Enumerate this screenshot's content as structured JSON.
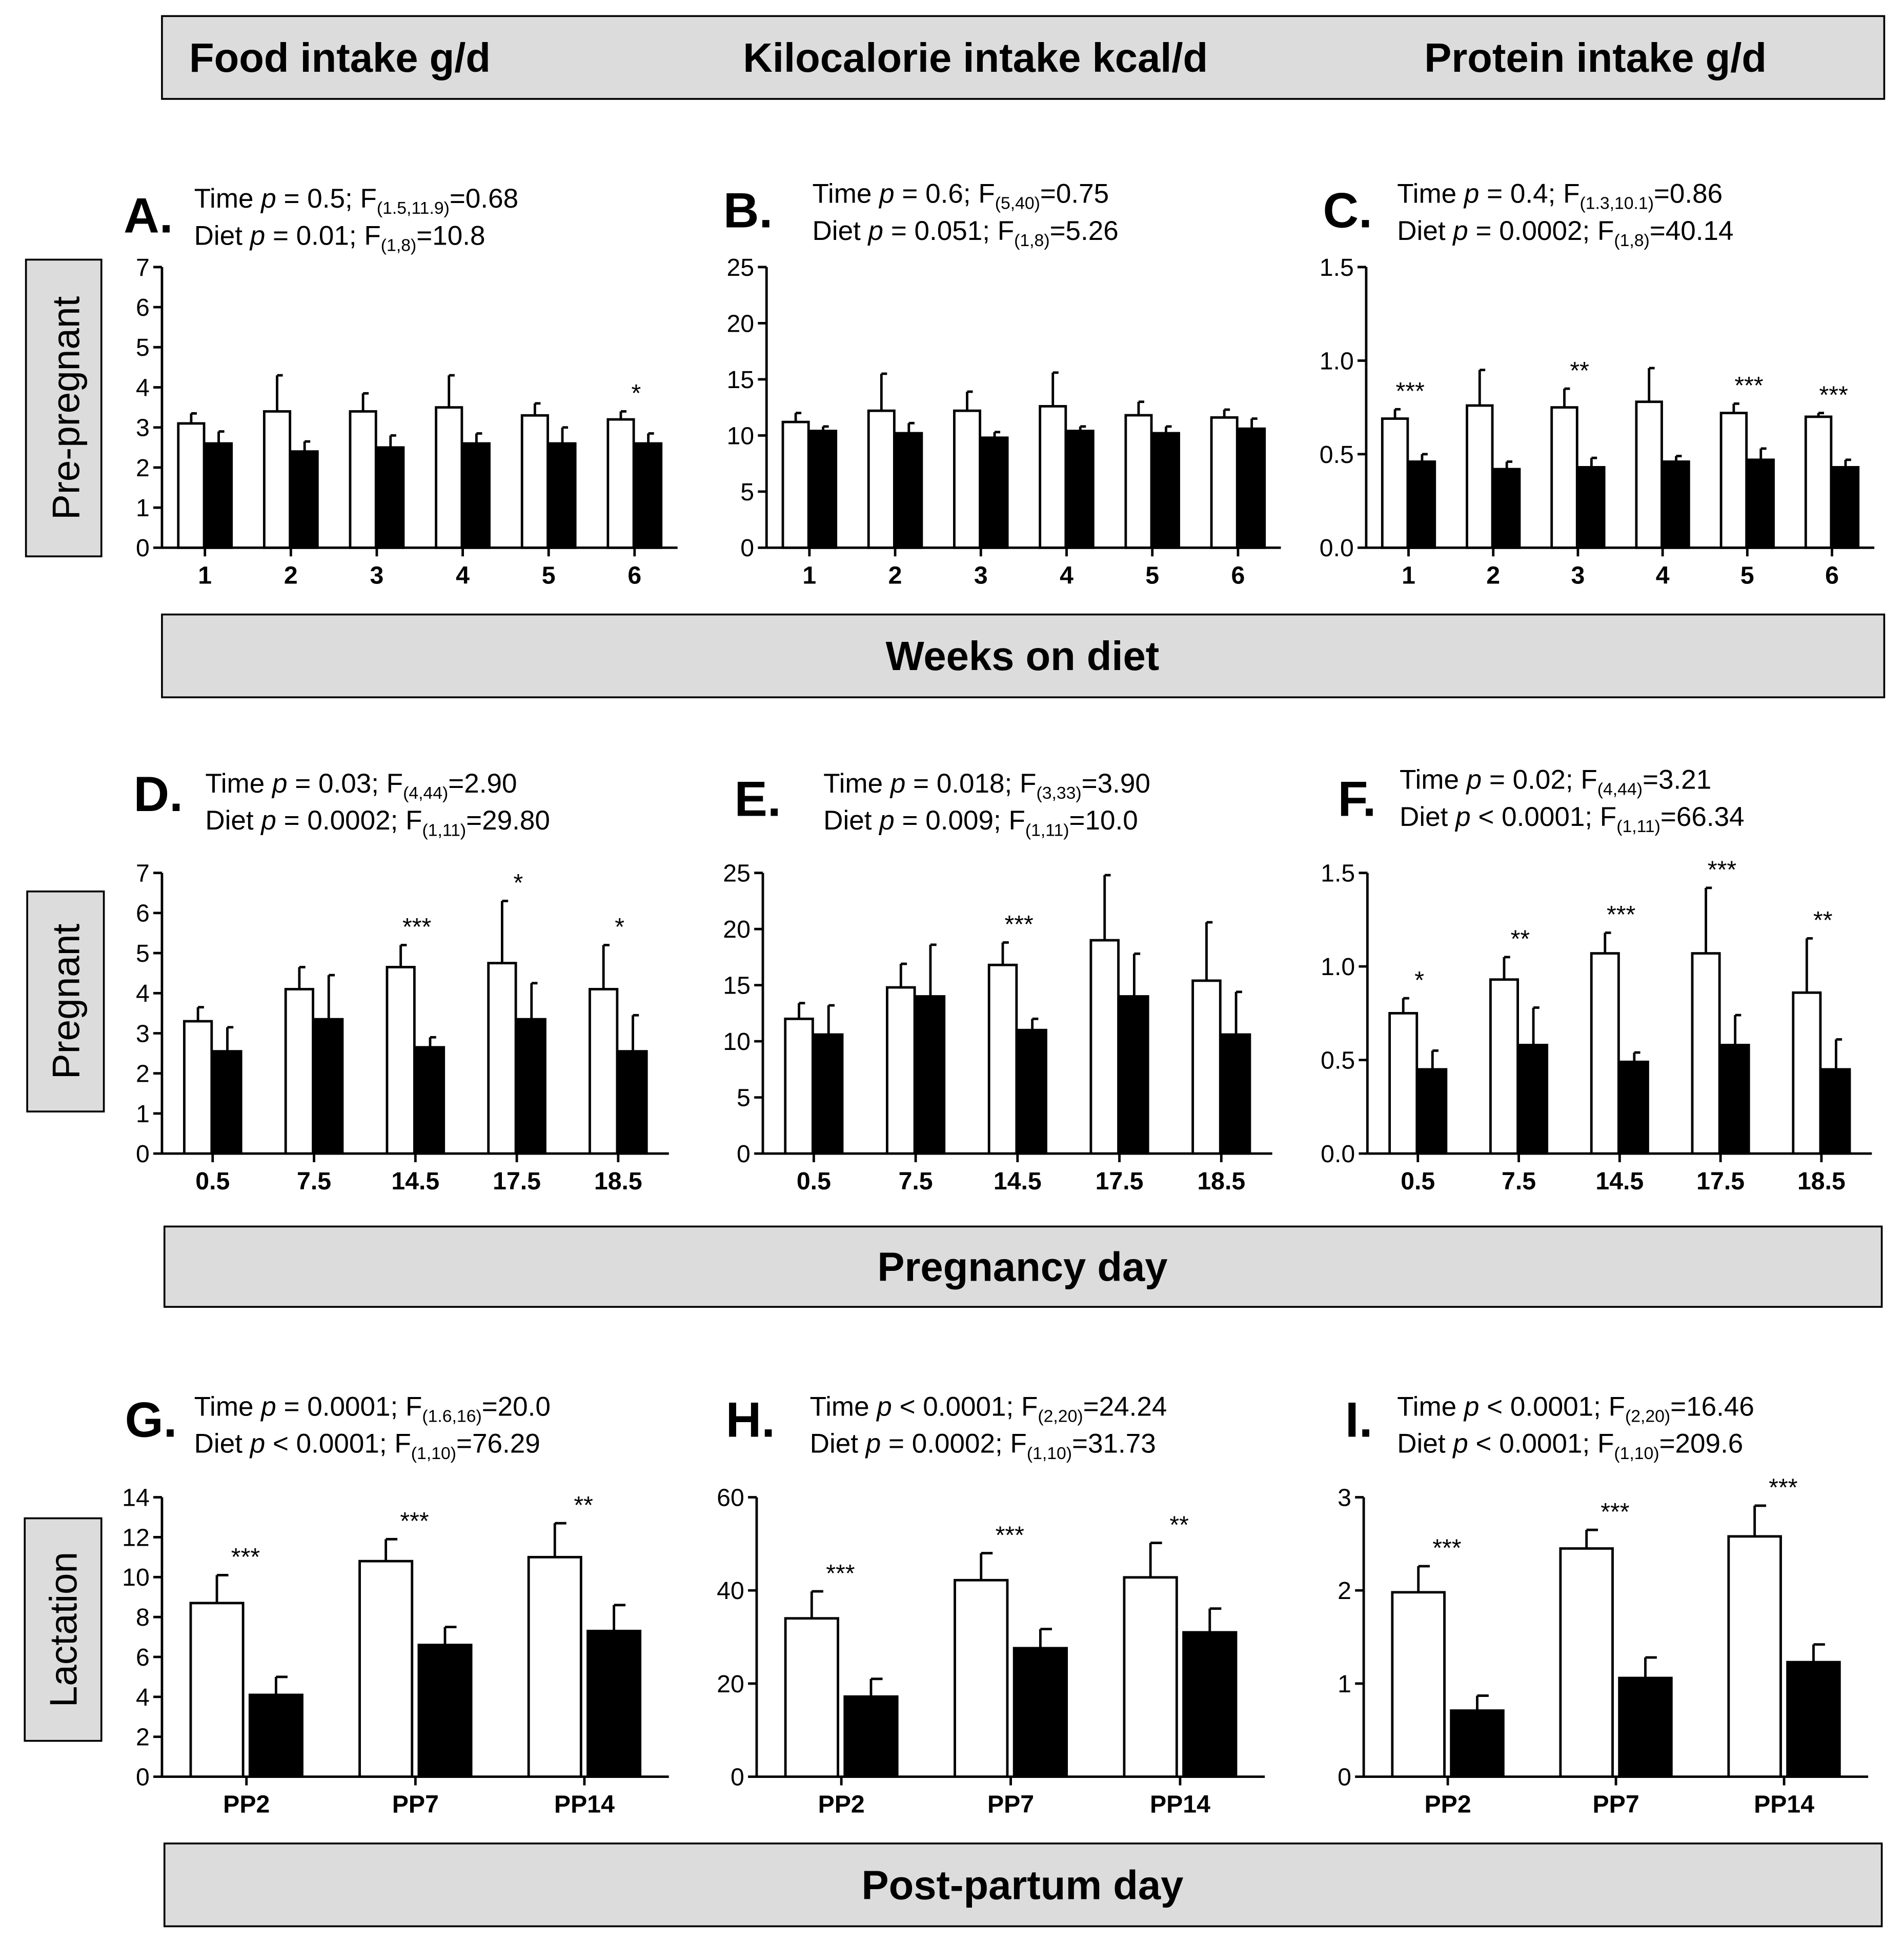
{
  "header": {
    "columns": [
      "Food intake g/d",
      "Kilocalorie intake kcal/d",
      "Protein intake g/d"
    ]
  },
  "rows": [
    {
      "label": "Pre-pregnant",
      "axis_title": "Weeks on diet"
    },
    {
      "label": "Pregnant",
      "axis_title": "Pregnancy day"
    },
    {
      "label": "Lactation",
      "axis_title": "Post-partum day"
    }
  ],
  "legend_encoding": {
    "open_bar": "white",
    "filled_bar": "black"
  },
  "chart_data": [
    {
      "id": "A",
      "type": "bar",
      "row": 0,
      "col": 0,
      "letter": "A.",
      "stats": [
        {
          "prefix": "Time ",
          "p": "p",
          "mid": " = 0.5; F",
          "sub": "(1.5,11.9)",
          "suffix": "=0.68"
        },
        {
          "prefix": "Diet ",
          "p": "p",
          "mid": " = 0.01; F",
          "sub": "(1,8)",
          "suffix": "=10.8"
        }
      ],
      "categories": [
        "1",
        "2",
        "3",
        "4",
        "5",
        "6"
      ],
      "ylim": [
        0,
        7
      ],
      "yticks": [
        0,
        1,
        2,
        3,
        4,
        5,
        6,
        7
      ],
      "ytick_labels": [
        "0",
        "1",
        "2",
        "3",
        "4",
        "5",
        "6",
        "7"
      ],
      "series": [
        {
          "name": "open",
          "values": [
            3.1,
            3.4,
            3.4,
            3.5,
            3.3,
            3.2
          ],
          "errors": [
            0.25,
            0.9,
            0.45,
            0.8,
            0.3,
            0.2
          ]
        },
        {
          "name": "filled",
          "values": [
            2.6,
            2.4,
            2.5,
            2.6,
            2.6,
            2.6
          ],
          "errors": [
            0.3,
            0.25,
            0.3,
            0.25,
            0.4,
            0.25
          ]
        }
      ],
      "significance": [
        "",
        "",
        "",
        "",
        "",
        "*"
      ]
    },
    {
      "id": "B",
      "type": "bar",
      "row": 0,
      "col": 1,
      "letter": "B.",
      "stats": [
        {
          "prefix": "Time ",
          "p": "p",
          "mid": " = 0.6; F",
          "sub": "(5,40)",
          "suffix": "=0.75"
        },
        {
          "prefix": "Diet ",
          "p": "p",
          "mid": " = 0.051; F",
          "sub": "(1,8)",
          "suffix": "=5.26"
        }
      ],
      "categories": [
        "1",
        "2",
        "3",
        "4",
        "5",
        "6"
      ],
      "ylim": [
        0,
        25
      ],
      "yticks": [
        0,
        5,
        10,
        15,
        20,
        25
      ],
      "ytick_labels": [
        "0",
        "5",
        "10",
        "15",
        "20",
        "25"
      ],
      "series": [
        {
          "name": "open",
          "values": [
            11.2,
            12.2,
            12.2,
            12.6,
            11.8,
            11.6
          ],
          "errors": [
            0.8,
            3.3,
            1.7,
            3.0,
            1.2,
            0.7
          ]
        },
        {
          "name": "filled",
          "values": [
            10.4,
            10.2,
            9.8,
            10.4,
            10.2,
            10.6
          ],
          "errors": [
            0.4,
            0.9,
            0.5,
            0.4,
            0.6,
            0.9
          ]
        }
      ],
      "significance": [
        "",
        "",
        "",
        "",
        "",
        ""
      ]
    },
    {
      "id": "C",
      "type": "bar",
      "row": 0,
      "col": 2,
      "letter": "C.",
      "stats": [
        {
          "prefix": "Time ",
          "p": "p",
          "mid": " = 0.4; F",
          "sub": "(1.3,10.1)",
          "suffix": "=0.86"
        },
        {
          "prefix": "Diet ",
          "p": "p",
          "mid": " = 0.0002; F",
          "sub": "(1,8)",
          "suffix": "=40.14"
        }
      ],
      "categories": [
        "1",
        "2",
        "3",
        "4",
        "5",
        "6"
      ],
      "ylim": [
        0,
        1.5
      ],
      "yticks": [
        0,
        0.5,
        1.0,
        1.5
      ],
      "ytick_labels": [
        "0.0",
        "0.5",
        "1.0",
        "1.5"
      ],
      "series": [
        {
          "name": "open",
          "values": [
            0.69,
            0.76,
            0.75,
            0.78,
            0.72,
            0.7
          ],
          "errors": [
            0.05,
            0.19,
            0.1,
            0.18,
            0.05,
            0.02
          ]
        },
        {
          "name": "filled",
          "values": [
            0.46,
            0.42,
            0.43,
            0.46,
            0.47,
            0.43
          ],
          "errors": [
            0.04,
            0.04,
            0.05,
            0.03,
            0.06,
            0.04
          ]
        }
      ],
      "significance": [
        "***",
        "",
        "**",
        "",
        "***",
        "***"
      ]
    },
    {
      "id": "D",
      "type": "bar",
      "row": 1,
      "col": 0,
      "letter": "D.",
      "stats": [
        {
          "prefix": "Time ",
          "p": "p",
          "mid": " = 0.03; F",
          "sub": "(4,44)",
          "suffix": "=2.90"
        },
        {
          "prefix": "Diet ",
          "p": "p",
          "mid": " = 0.0002; F",
          "sub": "(1,11)",
          "suffix": "=29.80"
        }
      ],
      "categories": [
        "0.5",
        "7.5",
        "14.5",
        "17.5",
        "18.5"
      ],
      "ylim": [
        0,
        7
      ],
      "yticks": [
        0,
        1,
        2,
        3,
        4,
        5,
        6,
        7
      ],
      "ytick_labels": [
        "0",
        "1",
        "2",
        "3",
        "4",
        "5",
        "6",
        "7"
      ],
      "series": [
        {
          "name": "open",
          "values": [
            3.3,
            4.1,
            4.65,
            4.75,
            4.1
          ],
          "errors": [
            0.35,
            0.55,
            0.55,
            1.55,
            1.1
          ]
        },
        {
          "name": "filled",
          "values": [
            2.55,
            3.35,
            2.65,
            3.35,
            2.55
          ],
          "errors": [
            0.6,
            1.1,
            0.25,
            0.9,
            0.9
          ]
        }
      ],
      "significance": [
        "",
        "",
        "***",
        "*",
        "*"
      ]
    },
    {
      "id": "E",
      "type": "bar",
      "row": 1,
      "col": 1,
      "letter": "E.",
      "stats": [
        {
          "prefix": "Time ",
          "p": "p",
          "mid": " = 0.018; F",
          "sub": "(3,33)",
          "suffix": "=3.90"
        },
        {
          "prefix": "Diet ",
          "p": "p",
          "mid": " = 0.009; F",
          "sub": "(1,11)",
          "suffix": "=10.0"
        }
      ],
      "categories": [
        "0.5",
        "7.5",
        "14.5",
        "17.5",
        "18.5"
      ],
      "ylim": [
        0,
        25
      ],
      "yticks": [
        0,
        5,
        10,
        15,
        20,
        25
      ],
      "ytick_labels": [
        "0",
        "5",
        "10",
        "15",
        "20",
        "25"
      ],
      "series": [
        {
          "name": "open",
          "values": [
            12.0,
            14.8,
            16.8,
            19.0,
            15.4
          ],
          "errors": [
            1.4,
            2.1,
            2.0,
            5.8,
            5.2
          ]
        },
        {
          "name": "filled",
          "values": [
            10.6,
            14.0,
            11.0,
            14.0,
            10.6
          ],
          "errors": [
            2.6,
            4.6,
            1.0,
            3.8,
            3.8
          ]
        }
      ],
      "significance": [
        "",
        "",
        "***",
        "",
        ""
      ]
    },
    {
      "id": "F",
      "type": "bar",
      "row": 1,
      "col": 2,
      "letter": "F.",
      "stats": [
        {
          "prefix": "Time ",
          "p": "p",
          "mid": " = 0.02; F",
          "sub": "(4,44)",
          "suffix": "=3.21"
        },
        {
          "prefix": "Diet ",
          "p": "p",
          "mid": " < 0.0001; F",
          "sub": "(1,11)",
          "suffix": "=66.34"
        }
      ],
      "categories": [
        "0.5",
        "7.5",
        "14.5",
        "17.5",
        "18.5"
      ],
      "ylim": [
        0,
        1.5
      ],
      "yticks": [
        0,
        0.5,
        1.0,
        1.5
      ],
      "ytick_labels": [
        "0.0",
        "0.5",
        "1.0",
        "1.5"
      ],
      "series": [
        {
          "name": "open",
          "values": [
            0.75,
            0.93,
            1.07,
            1.07,
            0.86
          ],
          "errors": [
            0.08,
            0.12,
            0.11,
            0.35,
            0.29
          ]
        },
        {
          "name": "filled",
          "values": [
            0.45,
            0.58,
            0.49,
            0.58,
            0.45
          ],
          "errors": [
            0.1,
            0.2,
            0.05,
            0.16,
            0.16
          ]
        }
      ],
      "significance": [
        "*",
        "**",
        "***",
        "***",
        "**"
      ]
    },
    {
      "id": "G",
      "type": "bar",
      "row": 2,
      "col": 0,
      "letter": "G.",
      "stats": [
        {
          "prefix": "Time ",
          "p": "p",
          "mid": " = 0.0001; F",
          "sub": "(1.6,16)",
          "suffix": "=20.0"
        },
        {
          "prefix": "Diet ",
          "p": "p",
          "mid": " < 0.0001; F",
          "sub": "(1,10)",
          "suffix": "=76.29"
        }
      ],
      "categories": [
        "PP2",
        "PP7",
        "PP14"
      ],
      "ylim": [
        0,
        14
      ],
      "yticks": [
        0,
        2,
        4,
        6,
        8,
        10,
        12,
        14
      ],
      "ytick_labels": [
        "0",
        "2",
        "4",
        "6",
        "8",
        "10",
        "12",
        "14"
      ],
      "series": [
        {
          "name": "open",
          "values": [
            8.7,
            10.8,
            11.0
          ],
          "errors": [
            1.4,
            1.1,
            1.7
          ]
        },
        {
          "name": "filled",
          "values": [
            4.1,
            6.6,
            7.3
          ],
          "errors": [
            0.9,
            0.9,
            1.3
          ]
        }
      ],
      "significance": [
        "***",
        "***",
        "**"
      ]
    },
    {
      "id": "H",
      "type": "bar",
      "row": 2,
      "col": 1,
      "letter": "H.",
      "stats": [
        {
          "prefix": "Time ",
          "p": "p",
          "mid": " < 0.0001; F",
          "sub": "(2,20)",
          "suffix": "=24.24"
        },
        {
          "prefix": "Diet ",
          "p": "p",
          "mid": " = 0.0002; F",
          "sub": "(1,10)",
          "suffix": "=31.73"
        }
      ],
      "categories": [
        "PP2",
        "PP7",
        "PP14"
      ],
      "ylim": [
        0,
        60
      ],
      "yticks": [
        0,
        20,
        40,
        60
      ],
      "ytick_labels": [
        "0",
        "20",
        "40",
        "60"
      ],
      "series": [
        {
          "name": "open",
          "values": [
            34,
            42.2,
            42.8
          ],
          "errors": [
            5.8,
            5.8,
            7.4
          ]
        },
        {
          "name": "filled",
          "values": [
            17.2,
            27.6,
            31.0
          ],
          "errors": [
            3.8,
            4.1,
            5.1
          ]
        }
      ],
      "significance": [
        "***",
        "***",
        "**"
      ]
    },
    {
      "id": "I",
      "type": "bar",
      "row": 2,
      "col": 2,
      "letter": "I.",
      "stats": [
        {
          "prefix": "Time ",
          "p": "p",
          "mid": " < 0.0001; F",
          "sub": "(2,20)",
          "suffix": "=16.46"
        },
        {
          "prefix": "Diet ",
          "p": "p",
          "mid": " < 0.0001; F",
          "sub": "(1,10)",
          "suffix": "=209.6"
        }
      ],
      "categories": [
        "PP2",
        "PP7",
        "PP14"
      ],
      "ylim": [
        0,
        3
      ],
      "yticks": [
        0,
        1,
        2,
        3
      ],
      "ytick_labels": [
        "0",
        "1",
        "2",
        "3"
      ],
      "series": [
        {
          "name": "open",
          "values": [
            1.98,
            2.45,
            2.58
          ],
          "errors": [
            0.28,
            0.2,
            0.33
          ]
        },
        {
          "name": "filled",
          "values": [
            0.71,
            1.06,
            1.23
          ],
          "errors": [
            0.16,
            0.22,
            0.19
          ]
        }
      ],
      "significance": [
        "***",
        "***",
        "***"
      ]
    }
  ]
}
